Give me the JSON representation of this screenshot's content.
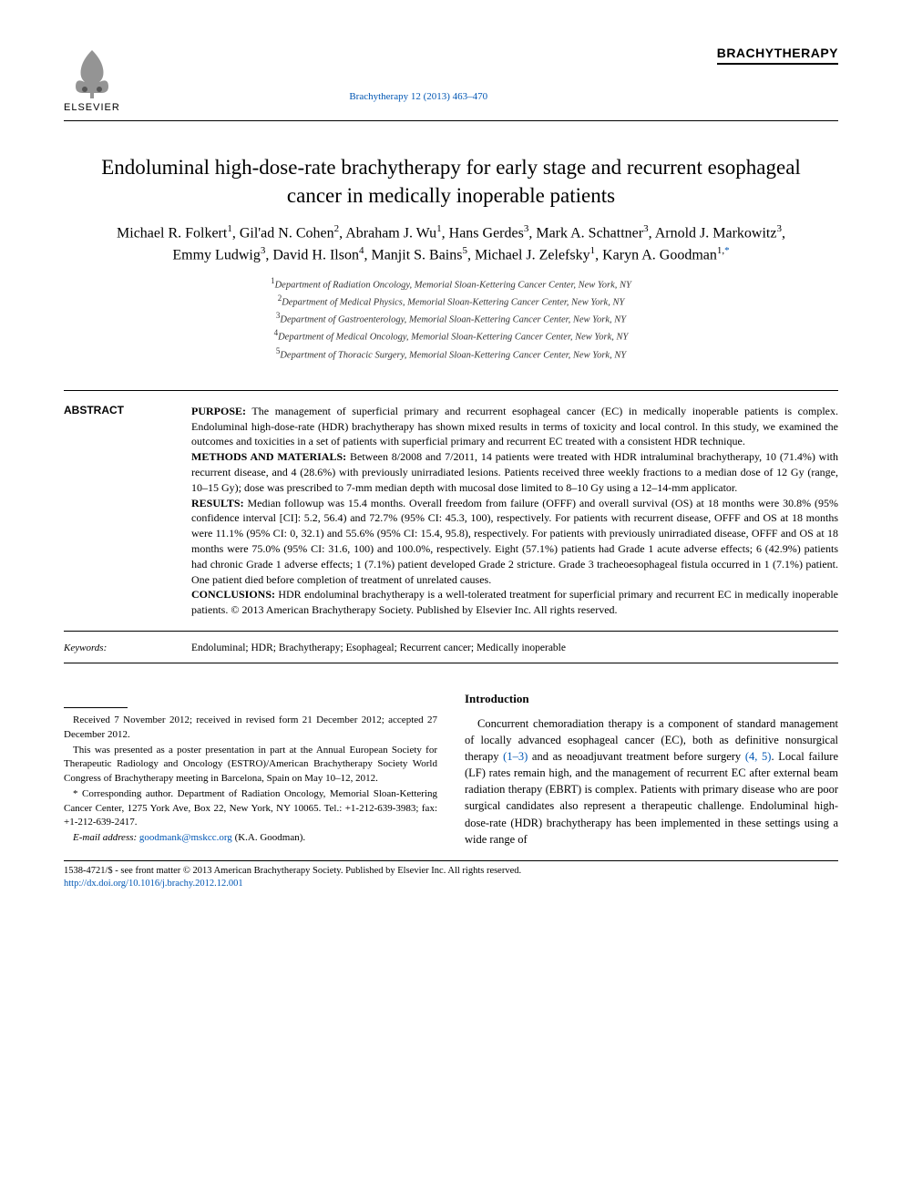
{
  "header": {
    "publisher": "ELSEVIER",
    "journal_ref": "Brachytherapy 12 (2013) 463–470",
    "journal_logo": "BRACHYTHERAPY"
  },
  "title": "Endoluminal high-dose-rate brachytherapy for early stage and recurrent esophageal cancer in medically inoperable patients",
  "authors_html": "Michael R. Folkert<sup>1</sup>, Gil'ad N. Cohen<sup>2</sup>, Abraham J. Wu<sup>1</sup>, Hans Gerdes<sup>3</sup>, Mark A. Schattner<sup>3</sup>, Arnold J. Markowitz<sup>3</sup>, Emmy Ludwig<sup>3</sup>, David H. Ilson<sup>4</sup>, Manjit S. Bains<sup>5</sup>, Michael J. Zelefsky<sup>1</sup>, Karyn A. Goodman<sup>1,</sup><sup class=\"corr-star\">*</sup>",
  "affiliations": [
    {
      "n": "1",
      "text": "Department of Radiation Oncology, Memorial Sloan-Kettering Cancer Center, New York, NY"
    },
    {
      "n": "2",
      "text": "Department of Medical Physics, Memorial Sloan-Kettering Cancer Center, New York, NY"
    },
    {
      "n": "3",
      "text": "Department of Gastroenterology, Memorial Sloan-Kettering Cancer Center, New York, NY"
    },
    {
      "n": "4",
      "text": "Department of Medical Oncology, Memorial Sloan-Kettering Cancer Center, New York, NY"
    },
    {
      "n": "5",
      "text": "Department of Thoracic Surgery, Memorial Sloan-Kettering Cancer Center, New York, NY"
    }
  ],
  "abstract": {
    "label": "ABSTRACT",
    "purpose_head": "PURPOSE:",
    "purpose": "The management of superficial primary and recurrent esophageal cancer (EC) in medically inoperable patients is complex. Endoluminal high-dose-rate (HDR) brachytherapy has shown mixed results in terms of toxicity and local control. In this study, we examined the outcomes and toxicities in a set of patients with superficial primary and recurrent EC treated with a consistent HDR technique.",
    "methods_head": "METHODS AND MATERIALS:",
    "methods": "Between 8/2008 and 7/2011, 14 patients were treated with HDR intraluminal brachytherapy, 10 (71.4%) with recurrent disease, and 4 (28.6%) with previously unirradiated lesions. Patients received three weekly fractions to a median dose of 12 Gy (range, 10–15 Gy); dose was prescribed to 7-mm median depth with mucosal dose limited to 8–10 Gy using a 12–14-mm applicator.",
    "results_head": "RESULTS:",
    "results": "Median followup was 15.4 months. Overall freedom from failure (OFFF) and overall survival (OS) at 18 months were 30.8% (95% confidence interval [CI]: 5.2, 56.4) and 72.7% (95% CI: 45.3, 100), respectively. For patients with recurrent disease, OFFF and OS at 18 months were 11.1% (95% CI: 0, 32.1) and 55.6% (95% CI: 15.4, 95.8), respectively. For patients with previously unirradiated disease, OFFF and OS at 18 months were 75.0% (95% CI: 31.6, 100) and 100.0%, respectively. Eight (57.1%) patients had Grade 1 acute adverse effects; 6 (42.9%) patients had chronic Grade 1 adverse effects; 1 (7.1%) patient developed Grade 2 stricture. Grade 3 tracheoesophageal fistula occurred in 1 (7.1%) patient. One patient died before completion of treatment of unrelated causes.",
    "conclusions_head": "CONCLUSIONS:",
    "conclusions": "HDR endoluminal brachytherapy is a well-tolerated treatment for superficial primary and recurrent EC in medically inoperable patients. © 2013 American Brachytherapy Society. Published by Elsevier Inc. All rights reserved."
  },
  "keywords": {
    "label": "Keywords:",
    "text": "Endoluminal; HDR; Brachytherapy; Esophageal; Recurrent cancer; Medically inoperable"
  },
  "footnotes": {
    "received": "Received 7 November 2012; received in revised form 21 December 2012; accepted 27 December 2012.",
    "presented": "This was presented as a poster presentation in part at the Annual European Society for Therapeutic Radiology and Oncology (ESTRO)/American Brachytherapy Society World Congress of Brachytherapy meeting in Barcelona, Spain on May 10–12, 2012.",
    "corr_label": "* Corresponding author.",
    "corr_text": "Department of Radiation Oncology, Memorial Sloan-Kettering Cancer Center, 1275 York Ave, Box 22, New York, NY 10065. Tel.: +1-212-639-3983; fax: +1-212-639-2417.",
    "email_label": "E-mail address:",
    "email": "goodmank@mskcc.org",
    "email_tail": "(K.A. Goodman)."
  },
  "introduction": {
    "heading": "Introduction",
    "para_pre": "Concurrent chemoradiation therapy is a component of standard management of locally advanced esophageal cancer (EC), both as definitive nonsurgical therapy ",
    "cite1": "(1–3)",
    "para_mid1": " and as neoadjuvant treatment before surgery ",
    "cite2": "(4, 5)",
    "para_post": ". Local failure (LF) rates remain high, and the management of recurrent EC after external beam radiation therapy (EBRT) is complex. Patients with primary disease who are poor surgical candidates also represent a therapeutic challenge. Endoluminal high-dose-rate (HDR) brachytherapy has been implemented in these settings using a wide range of"
  },
  "footer": {
    "copyright": "1538-4721/$ - see front matter © 2013 American Brachytherapy Society. Published by Elsevier Inc. All rights reserved.",
    "doi": "http://dx.doi.org/10.1016/j.brachy.2012.12.001"
  },
  "colors": {
    "link": "#0056b3",
    "text": "#000000",
    "bg": "#ffffff"
  },
  "typography": {
    "title_fontsize": 23,
    "author_fontsize": 16,
    "affil_fontsize": 10.5,
    "abstract_fontsize": 12,
    "body_fontsize": 12.5,
    "footnote_fontsize": 11,
    "footer_fontsize": 10.5
  }
}
